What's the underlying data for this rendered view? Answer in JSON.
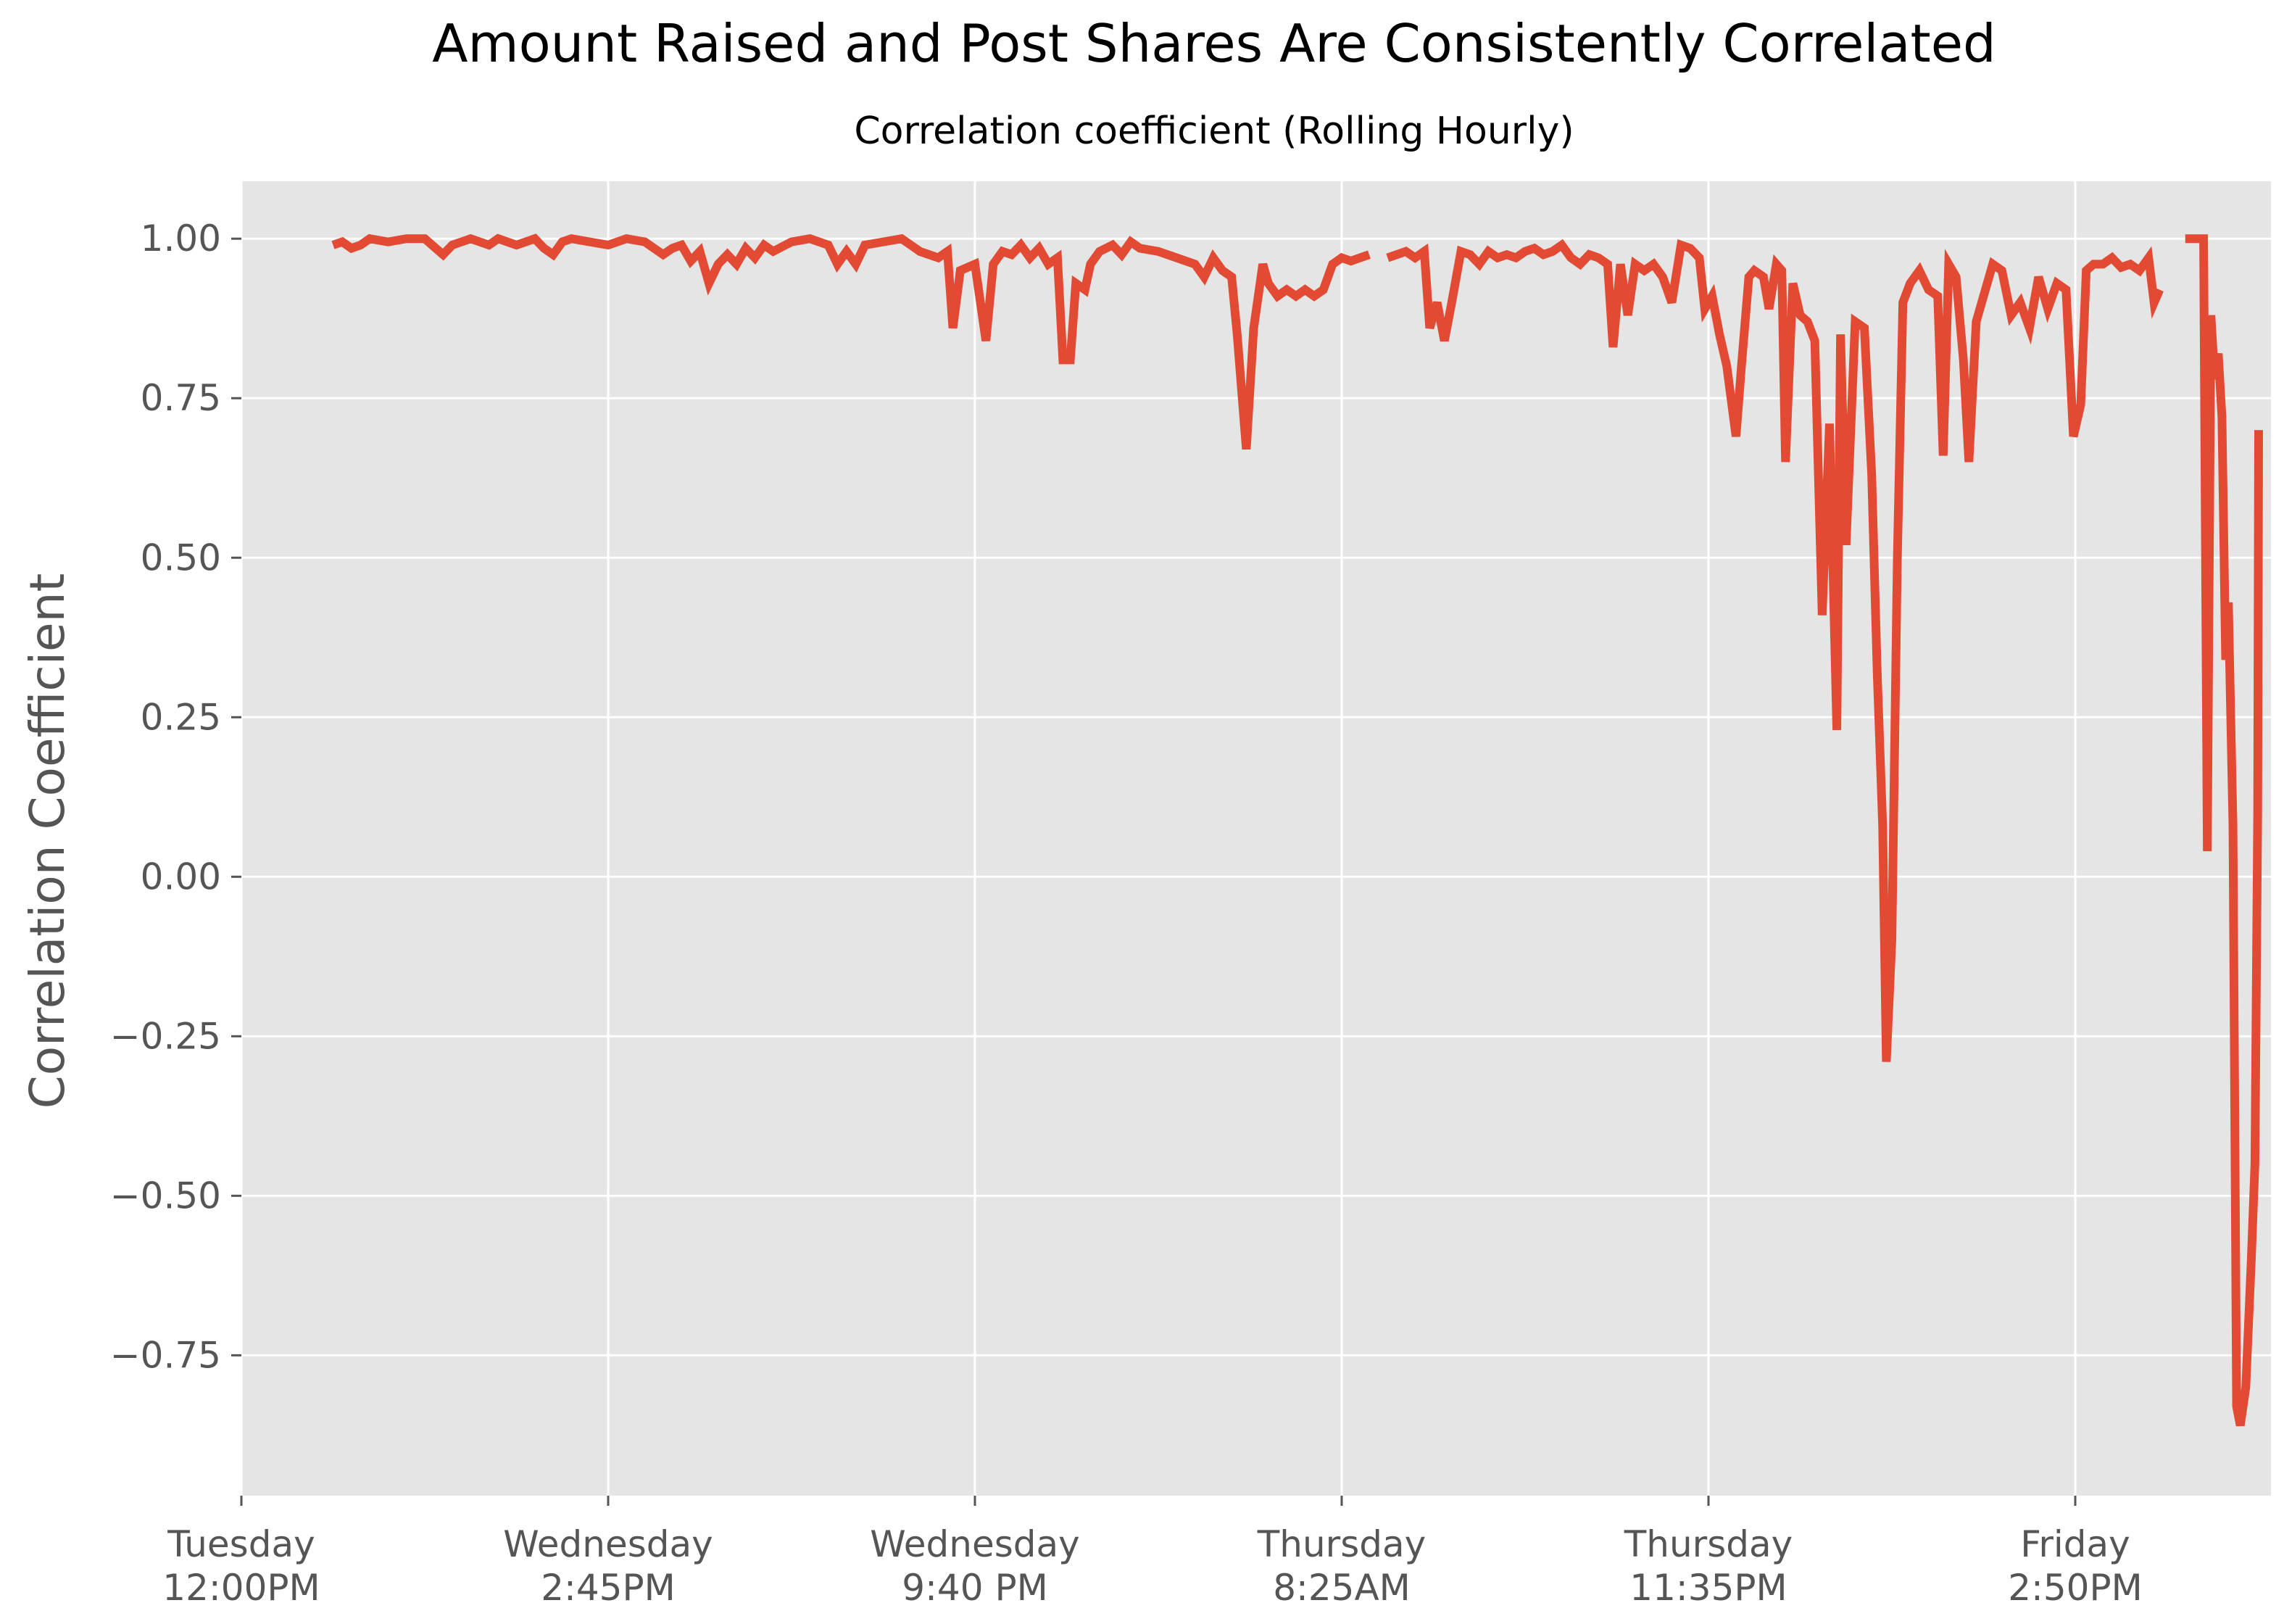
{
  "chart_data": {
    "type": "line",
    "title": "Amount Raised and Post Shares Are Consistently Correlated",
    "subtitle": "Correlation coefficient (Rolling Hourly)",
    "xlabel": "",
    "ylabel": "Correlation Coefficient",
    "ylim": [
      -0.97,
      1.09
    ],
    "xlim": [
      0,
      110
    ],
    "x_units": "hours since Tuesday 12:00PM",
    "grid": true,
    "background": "#e5e5e5",
    "line_color": "#e24a33",
    "y_ticks": [
      {
        "value": 1.0,
        "label": "1.00"
      },
      {
        "value": 0.75,
        "label": "0.75"
      },
      {
        "value": 0.5,
        "label": "0.50"
      },
      {
        "value": 0.25,
        "label": "0.25"
      },
      {
        "value": 0.0,
        "label": "0.00"
      },
      {
        "value": -0.25,
        "label": "−0.25"
      },
      {
        "value": -0.5,
        "label": "−0.50"
      },
      {
        "value": -0.75,
        "label": "−0.75"
      }
    ],
    "x_ticks": [
      {
        "value": 0,
        "line1": "Tuesday",
        "line2": "12:00PM"
      },
      {
        "value": 20,
        "line1": "Wednesday",
        "line2": "2:45PM"
      },
      {
        "value": 40,
        "line1": "Wednesday",
        "line2": "9:40 PM"
      },
      {
        "value": 60,
        "line1": "Thursday",
        "line2": "8:25AM"
      },
      {
        "value": 80,
        "line1": "Thursday",
        "line2": "11:35PM"
      },
      {
        "value": 100,
        "line1": "Friday",
        "line2": "2:50PM"
      }
    ],
    "segments": [
      [
        [
          5.0,
          0.99
        ],
        [
          5.5,
          0.995
        ],
        [
          6.0,
          0.985
        ],
        [
          6.5,
          0.99
        ],
        [
          7.0,
          1.0
        ],
        [
          8.0,
          0.995
        ],
        [
          9.0,
          1.0
        ],
        [
          10.0,
          1.0
        ],
        [
          11.0,
          0.975
        ],
        [
          11.5,
          0.99
        ],
        [
          12.5,
          1.0
        ],
        [
          13.5,
          0.99
        ],
        [
          14.0,
          1.0
        ],
        [
          14.5,
          0.995
        ],
        [
          15.0,
          0.99
        ],
        [
          16.0,
          1.0
        ],
        [
          16.5,
          0.985
        ],
        [
          17.0,
          0.975
        ],
        [
          17.5,
          0.995
        ],
        [
          18.0,
          1.0
        ],
        [
          19.0,
          0.995
        ],
        [
          20.0,
          0.99
        ],
        [
          21.0,
          1.0
        ],
        [
          22.0,
          0.995
        ],
        [
          22.5,
          0.985
        ],
        [
          23.0,
          0.975
        ],
        [
          23.5,
          0.985
        ],
        [
          24.0,
          0.99
        ],
        [
          24.5,
          0.965
        ],
        [
          25.0,
          0.98
        ],
        [
          25.5,
          0.93
        ],
        [
          26.0,
          0.96
        ],
        [
          26.5,
          0.975
        ],
        [
          27.0,
          0.96
        ],
        [
          27.5,
          0.985
        ],
        [
          28.0,
          0.97
        ],
        [
          28.5,
          0.99
        ],
        [
          29.0,
          0.98
        ],
        [
          30.0,
          0.995
        ],
        [
          31.0,
          1.0
        ],
        [
          32.0,
          0.99
        ],
        [
          32.5,
          0.96
        ],
        [
          33.0,
          0.98
        ],
        [
          33.5,
          0.96
        ],
        [
          34.0,
          0.99
        ],
        [
          35.0,
          0.995
        ],
        [
          36.0,
          1.0
        ],
        [
          36.5,
          0.99
        ],
        [
          37.0,
          0.98
        ],
        [
          38.0,
          0.97
        ],
        [
          38.5,
          0.98
        ],
        [
          38.8,
          0.86
        ],
        [
          39.2,
          0.95
        ],
        [
          40.0,
          0.96
        ],
        [
          40.6,
          0.84
        ],
        [
          41.0,
          0.96
        ],
        [
          41.5,
          0.98
        ],
        [
          42.0,
          0.975
        ],
        [
          42.5,
          0.99
        ],
        [
          43.0,
          0.97
        ],
        [
          43.5,
          0.985
        ],
        [
          44.0,
          0.96
        ],
        [
          44.5,
          0.97
        ],
        [
          44.8,
          0.81
        ],
        [
          45.2,
          0.81
        ],
        [
          45.5,
          0.93
        ],
        [
          46.0,
          0.92
        ],
        [
          46.3,
          0.96
        ],
        [
          46.8,
          0.98
        ],
        [
          47.5,
          0.99
        ],
        [
          48.0,
          0.975
        ],
        [
          48.5,
          0.995
        ],
        [
          49.0,
          0.985
        ],
        [
          50.0,
          0.98
        ],
        [
          51.0,
          0.97
        ],
        [
          52.0,
          0.96
        ],
        [
          52.5,
          0.94
        ],
        [
          53.0,
          0.97
        ],
        [
          53.5,
          0.95
        ],
        [
          54.0,
          0.94
        ],
        [
          54.3,
          0.85
        ],
        [
          54.8,
          0.67
        ],
        [
          55.2,
          0.86
        ],
        [
          55.7,
          0.96
        ],
        [
          56.0,
          0.93
        ],
        [
          56.5,
          0.91
        ],
        [
          57.0,
          0.92
        ],
        [
          57.5,
          0.91
        ],
        [
          58.0,
          0.92
        ],
        [
          58.5,
          0.91
        ],
        [
          59.0,
          0.92
        ],
        [
          59.5,
          0.96
        ],
        [
          60.0,
          0.97
        ],
        [
          60.5,
          0.965
        ],
        [
          61.0,
          0.97
        ],
        [
          61.5,
          0.975
        ]
      ],
      [
        [
          62.5,
          0.97
        ],
        [
          63.0,
          0.975
        ],
        [
          63.5,
          0.98
        ],
        [
          64.0,
          0.97
        ],
        [
          64.5,
          0.98
        ],
        [
          64.8,
          0.86
        ],
        [
          65.2,
          0.9
        ],
        [
          65.6,
          0.84
        ],
        [
          66.0,
          0.9
        ],
        [
          66.5,
          0.98
        ],
        [
          67.0,
          0.975
        ],
        [
          67.5,
          0.96
        ],
        [
          68.0,
          0.98
        ],
        [
          68.5,
          0.97
        ],
        [
          69.0,
          0.975
        ],
        [
          69.5,
          0.97
        ],
        [
          70.0,
          0.98
        ],
        [
          70.5,
          0.985
        ],
        [
          71.0,
          0.975
        ],
        [
          71.5,
          0.98
        ],
        [
          72.0,
          0.99
        ],
        [
          72.5,
          0.97
        ],
        [
          73.0,
          0.96
        ],
        [
          73.5,
          0.975
        ],
        [
          74.0,
          0.97
        ],
        [
          74.5,
          0.96
        ],
        [
          74.8,
          0.83
        ],
        [
          75.2,
          0.96
        ],
        [
          75.6,
          0.88
        ],
        [
          76.0,
          0.96
        ],
        [
          76.5,
          0.95
        ],
        [
          77.0,
          0.96
        ],
        [
          77.5,
          0.94
        ],
        [
          78.0,
          0.9
        ],
        [
          78.5,
          0.99
        ],
        [
          79.0,
          0.985
        ],
        [
          79.5,
          0.97
        ],
        [
          79.8,
          0.89
        ],
        [
          80.2,
          0.91
        ],
        [
          80.6,
          0.85
        ],
        [
          81.0,
          0.8
        ],
        [
          81.5,
          0.69
        ],
        [
          81.8,
          0.8
        ],
        [
          82.2,
          0.94
        ],
        [
          82.5,
          0.95
        ],
        [
          83.0,
          0.94
        ],
        [
          83.3,
          0.89
        ],
        [
          83.7,
          0.96
        ],
        [
          84.0,
          0.95
        ],
        [
          84.2,
          0.65
        ],
        [
          84.6,
          0.93
        ],
        [
          85.0,
          0.88
        ],
        [
          85.4,
          0.87
        ],
        [
          85.8,
          0.84
        ],
        [
          86.2,
          0.41
        ],
        [
          86.6,
          0.71
        ],
        [
          87.0,
          0.23
        ],
        [
          87.2,
          0.85
        ],
        [
          87.5,
          0.52
        ],
        [
          88.0,
          0.87
        ],
        [
          88.5,
          0.86
        ],
        [
          88.9,
          0.63
        ],
        [
          89.2,
          0.32
        ],
        [
          89.5,
          0.08
        ],
        [
          89.7,
          -0.29
        ],
        [
          90.0,
          -0.1
        ],
        [
          90.3,
          0.5
        ],
        [
          90.6,
          0.9
        ],
        [
          91.0,
          0.93
        ],
        [
          91.5,
          0.95
        ],
        [
          92.0,
          0.92
        ],
        [
          92.5,
          0.91
        ],
        [
          92.8,
          0.66
        ],
        [
          93.1,
          0.96
        ],
        [
          93.5,
          0.94
        ],
        [
          93.9,
          0.81
        ],
        [
          94.2,
          0.65
        ],
        [
          94.6,
          0.87
        ],
        [
          95.0,
          0.91
        ],
        [
          95.5,
          0.96
        ],
        [
          96.0,
          0.95
        ],
        [
          96.5,
          0.88
        ],
        [
          97.0,
          0.9
        ],
        [
          97.5,
          0.86
        ],
        [
          98.0,
          0.94
        ],
        [
          98.5,
          0.89
        ],
        [
          99.0,
          0.93
        ],
        [
          99.5,
          0.92
        ],
        [
          99.9,
          0.69
        ],
        [
          100.3,
          0.74
        ],
        [
          100.6,
          0.95
        ],
        [
          101.0,
          0.96
        ],
        [
          101.5,
          0.96
        ],
        [
          102.0,
          0.97
        ],
        [
          102.5,
          0.955
        ],
        [
          103.0,
          0.96
        ],
        [
          103.5,
          0.95
        ],
        [
          104.0,
          0.97
        ],
        [
          104.3,
          0.9
        ],
        [
          104.6,
          0.92
        ]
      ],
      [
        [
          106.0,
          1.0
        ],
        [
          107.0,
          1.0
        ],
        [
          107.2,
          0.04
        ],
        [
          107.4,
          0.88
        ],
        [
          107.6,
          0.78
        ],
        [
          107.8,
          0.82
        ],
        [
          108.0,
          0.72
        ],
        [
          108.2,
          0.34
        ],
        [
          108.35,
          0.43
        ],
        [
          108.6,
          0.08
        ],
        [
          108.8,
          -0.83
        ],
        [
          109.0,
          -0.86
        ],
        [
          109.3,
          -0.8
        ],
        [
          109.6,
          -0.6
        ],
        [
          109.8,
          -0.45
        ],
        [
          109.95,
          0.1
        ],
        [
          110.0,
          0.7
        ]
      ]
    ]
  }
}
